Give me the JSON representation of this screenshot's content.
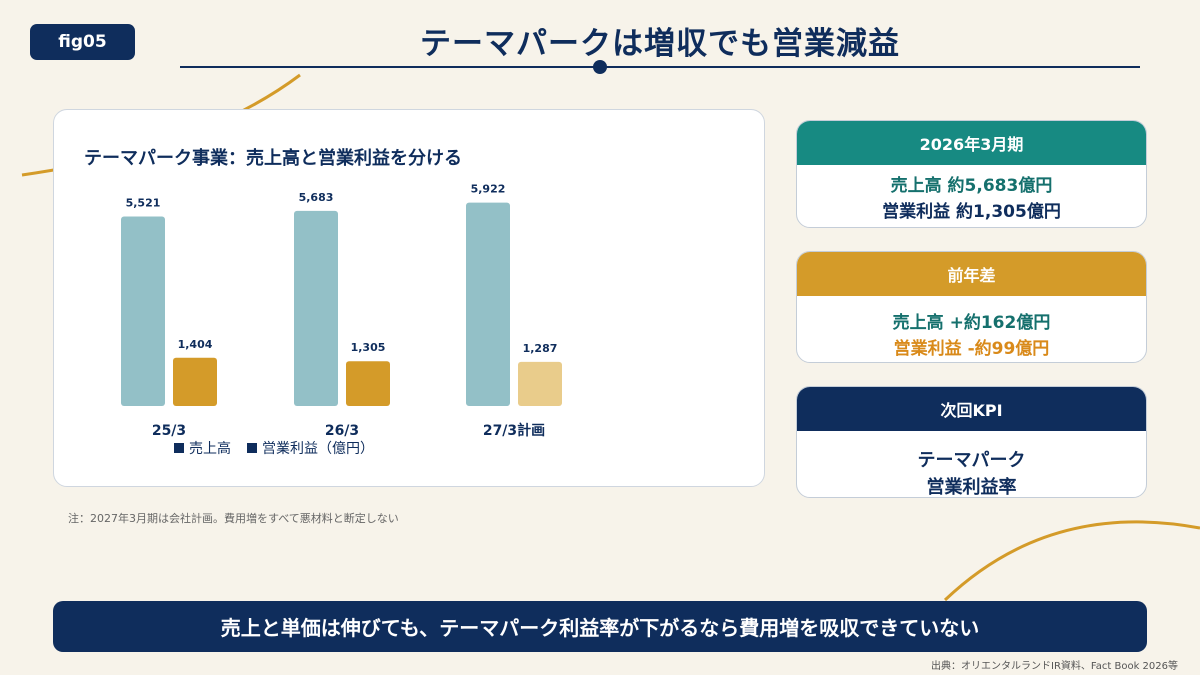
{
  "fig_tag": "fig05",
  "title": "テーマパークは増収でも営業減益",
  "chart": {
    "title": "テーマパーク事業：売上高と営業利益を分ける",
    "legend_sales": "売上高",
    "legend_profit": "営業利益（億円）"
  },
  "chart_data": {
    "type": "bar",
    "categories": [
      "25/3",
      "26/3",
      "27/3計画"
    ],
    "series": [
      {
        "name": "売上高",
        "values": [
          5521,
          5683,
          5922
        ],
        "labels": [
          "5,521",
          "5,683",
          "5,922"
        ]
      },
      {
        "name": "営業利益（億円）",
        "values": [
          1404,
          1305,
          1287
        ],
        "labels": [
          "1,404",
          "1,305",
          "1,287"
        ]
      }
    ],
    "ylim": [
      0,
      6000
    ],
    "grid": false,
    "legend_position": "bottom",
    "colors": {
      "sales": "#93c0c7",
      "profit": "#d49b29",
      "profit_plan": "#e9cc8b"
    }
  },
  "note": "注：2027年3月期は会社計画。費用増をすべて悪材料と断定しない",
  "kpi": {
    "period": {
      "header": "2026年3月期",
      "line1": "売上高 約5,683億円",
      "line2": "営業利益 約1,305億円"
    },
    "yoy": {
      "header": "前年差",
      "line1": "売上高 +約162億円",
      "line2": "営業利益 -約99億円"
    },
    "next": {
      "header": "次回KPI",
      "line1": "テーマパーク",
      "line2": "営業利益率"
    }
  },
  "banner": "売上と単価は伸びても、テーマパーク利益率が下がるなら費用増を吸収できていない",
  "source": "出典：オリエンタルランドIR資料、Fact Book 2026等",
  "colors": {
    "navy": "#0f2d5c",
    "teal": "#178a82",
    "gold": "#d49b29",
    "background": "#f7f3ea"
  }
}
